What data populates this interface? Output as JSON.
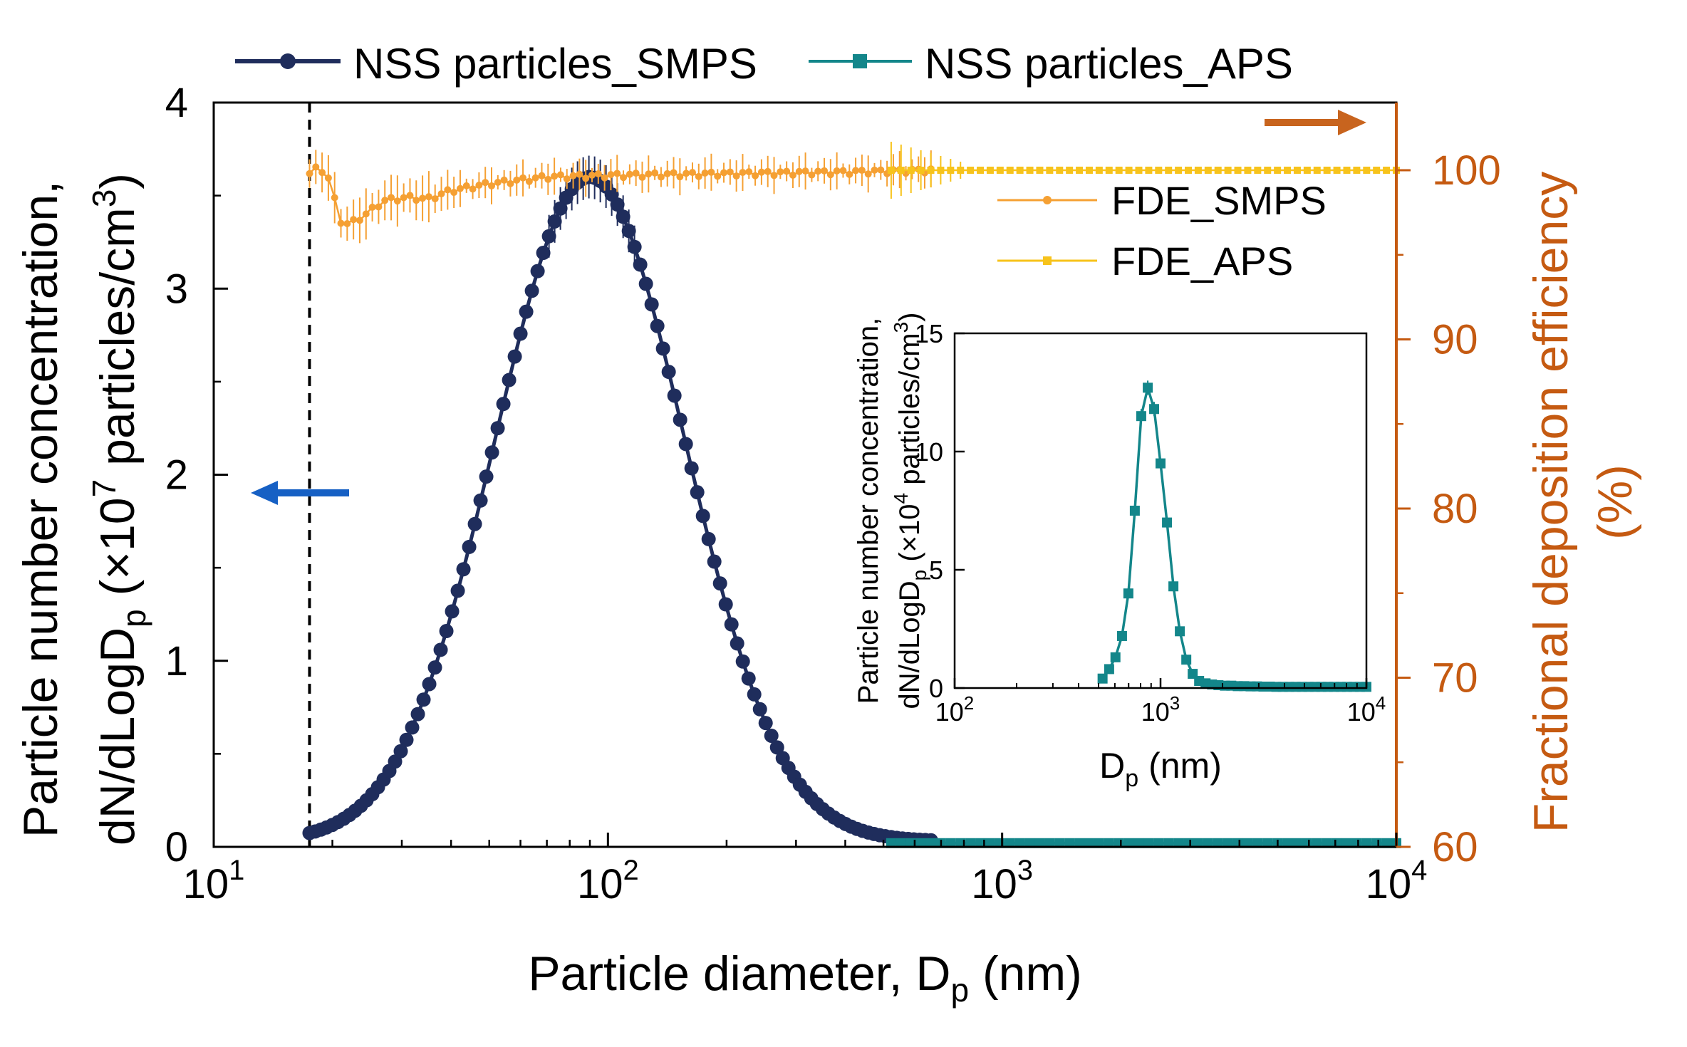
{
  "colors": {
    "smps": "#1f2d5c",
    "aps": "#13868a",
    "fde_smps": "#f5a033",
    "fde_aps": "#f7c31b",
    "right_axis": "#c55a11",
    "left_arrow": "#1660c4",
    "right_arrow": "#c8641e",
    "axis": "#000000"
  },
  "chart_data": [
    {
      "id": "main",
      "type": "line",
      "xscale": "log",
      "xlim": [
        10,
        10000
      ],
      "ylim": [
        0,
        4
      ],
      "y2lim": [
        60,
        104
      ],
      "xlabel": {
        "main": "Particle diameter,  D",
        "sub": "p",
        "tail": " (nm)"
      },
      "ylabel_line1": "Particle  number  concentration,",
      "ylabel_line2": {
        "a": "dN/dLogD",
        "sub": "p",
        "b": " (×10",
        "sup": "7",
        "c": " particles/cm",
        "sup2": "3",
        "d": ")"
      },
      "y2label_line1": "Fractional  deposition  efficiency",
      "y2label_line2": "(%)",
      "x_ticks": [
        {
          "value": 10,
          "base": "10",
          "exp": "1"
        },
        {
          "value": 100,
          "base": "10",
          "exp": "2"
        },
        {
          "value": 1000,
          "base": "10",
          "exp": "3"
        },
        {
          "value": 10000,
          "base": "10",
          "exp": "4"
        }
      ],
      "y_ticks": [
        {
          "value": 0,
          "label": "0"
        },
        {
          "value": 1,
          "label": "1"
        },
        {
          "value": 2,
          "label": "2"
        },
        {
          "value": 3,
          "label": "3"
        },
        {
          "value": 4,
          "label": "4"
        }
      ],
      "y2_ticks": [
        {
          "value": 60,
          "label": "60"
        },
        {
          "value": 70,
          "label": "70"
        },
        {
          "value": 80,
          "label": "80"
        },
        {
          "value": 90,
          "label": "90"
        },
        {
          "value": 100,
          "label": "100"
        }
      ],
      "dashed_line_x": 17.5,
      "legend_top": [
        {
          "name": "NSS particles_SMPS",
          "series": "smps",
          "marker": "circle"
        },
        {
          "name": "NSS particles_APS",
          "series": "aps",
          "marker": "square"
        }
      ],
      "legend_right": [
        {
          "name": "FDE_SMPS",
          "series": "fde_smps",
          "marker": "circle"
        },
        {
          "name": "FDE_APS",
          "series": "fde_aps",
          "marker": "square"
        }
      ],
      "series": [
        {
          "name": "NSS particles_SMPS",
          "axis": "left",
          "model": {
            "kind": "lognormal",
            "x_min": 17.5,
            "x_max": 660,
            "n": 110,
            "mode": 90,
            "peak": 3.6,
            "sigma_log10": 0.24,
            "background": 0.03
          }
        },
        {
          "name": "NSS particles_APS",
          "axis": "left",
          "model": {
            "kind": "flat",
            "x_min": 523,
            "x_max": 10000,
            "n": 52,
            "value": 0.02
          }
        },
        {
          "name": "FDE_SMPS",
          "axis": "right",
          "anchors": [
            [
              17.5,
              99.8
            ],
            [
              18.5,
              100.2
            ],
            [
              19.5,
              99.6
            ],
            [
              21,
              97
            ],
            [
              22,
              96.8
            ],
            [
              24,
              97.3
            ],
            [
              27,
              98.2
            ],
            [
              31,
              98.4
            ],
            [
              35,
              98.3
            ],
            [
              40,
              98.8
            ],
            [
              50,
              99.2
            ],
            [
              70,
              99.6
            ],
            [
              100,
              99.7
            ],
            [
              200,
              99.8
            ],
            [
              400,
              99.9
            ],
            [
              660,
              100.0
            ]
          ],
          "n": 100
        },
        {
          "name": "FDE_APS",
          "axis": "right",
          "model": {
            "kind": "flat",
            "x_min": 523,
            "x_max": 10000,
            "n": 52,
            "value": 100
          }
        }
      ],
      "annotations": [
        {
          "kind": "arrow",
          "direction": "left",
          "meaning": "left axis"
        },
        {
          "kind": "arrow",
          "direction": "right",
          "meaning": "right axis"
        }
      ]
    },
    {
      "id": "inset",
      "type": "line",
      "xscale": "log",
      "xlim": [
        100,
        10000
      ],
      "ylim": [
        0,
        15
      ],
      "xlabel": {
        "main": "D",
        "sub": "p",
        "tail": " (nm)"
      },
      "ylabel_line1": "Particle number concentration,",
      "ylabel_line2": {
        "a": "dN/dLogD",
        "sub": "p",
        "b": " (×10",
        "sup": "4",
        "c": " particles/cm",
        "sup2": "3",
        "d": ")"
      },
      "x_ticks": [
        {
          "value": 100,
          "base": "10",
          "exp": "2"
        },
        {
          "value": 1000,
          "base": "10",
          "exp": "3"
        },
        {
          "value": 10000,
          "base": "10",
          "exp": "4"
        }
      ],
      "y_ticks": [
        {
          "value": 0,
          "label": "0"
        },
        {
          "value": 5,
          "label": "5"
        },
        {
          "value": 10,
          "label": "10"
        },
        {
          "value": 15,
          "label": "15"
        }
      ],
      "series": [
        {
          "name": "NSS particles_APS",
          "points": [
            [
              523,
              0.4
            ],
            [
              563,
              0.8
            ],
            [
              604,
              1.3
            ],
            [
              650,
              2.2
            ],
            [
              698,
              4.0
            ],
            [
              750,
              7.5
            ],
            [
              806,
              11.5
            ],
            [
              867,
              12.7
            ],
            [
              931,
              11.8
            ],
            [
              1000,
              9.5
            ],
            [
              1075,
              7.0
            ],
            [
              1155,
              4.3
            ],
            [
              1241,
              2.4
            ],
            [
              1334,
              1.2
            ],
            [
              1433,
              0.6
            ],
            [
              1540,
              0.3
            ],
            [
              1655,
              0.2
            ],
            [
              1779,
              0.15
            ],
            [
              1911,
              0.12
            ],
            [
              2054,
              0.1
            ],
            [
              2207,
              0.1
            ],
            [
              2371,
              0.08
            ],
            [
              2548,
              0.08
            ],
            [
              2738,
              0.07
            ],
            [
              2943,
              0.07
            ],
            [
              3162,
              0.06
            ],
            [
              3398,
              0.06
            ],
            [
              3652,
              0.05
            ],
            [
              3924,
              0.05
            ],
            [
              4217,
              0.05
            ],
            [
              4532,
              0.05
            ],
            [
              4870,
              0.05
            ],
            [
              5233,
              0.05
            ],
            [
              5623,
              0.05
            ],
            [
              6043,
              0.05
            ],
            [
              6494,
              0.05
            ],
            [
              6978,
              0.05
            ],
            [
              7499,
              0.05
            ],
            [
              8058,
              0.05
            ],
            [
              8660,
              0.05
            ],
            [
              9306,
              0.05
            ],
            [
              10000,
              0.05
            ]
          ]
        }
      ]
    }
  ]
}
